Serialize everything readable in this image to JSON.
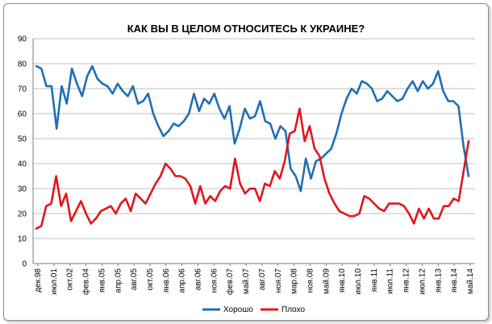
{
  "chart_data": {
    "type": "line",
    "title": "КАК ВЫ В ЦЕЛОМ ОТНОСИТЕСЬ К УКРАИНЕ?",
    "xlabel": "",
    "ylabel": "",
    "ylim": [
      0,
      90
    ],
    "yticks": [
      0,
      10,
      20,
      30,
      40,
      50,
      60,
      70,
      80,
      90
    ],
    "grid": true,
    "legend_position": "bottom",
    "x_tick_labels": [
      "дек.98",
      "июл.01",
      "окт.02",
      "фев.04",
      "янв.05",
      "апр.05",
      "авг.05",
      "окт.05",
      "янв.06",
      "апр.06",
      "авг.06",
      "ноя.06",
      "фев.07",
      "май.07",
      "авг.07",
      "ноя.07",
      "мар.08",
      "ноя.08",
      "май.09",
      "янв.10",
      "июл.10",
      "янв.11",
      "июл.11",
      "янв.12",
      "июл.12",
      "янв.13",
      "янв.14",
      "май.14"
    ],
    "series": [
      {
        "name": "Хорошо",
        "color": "#1f6fb4",
        "values": [
          79,
          78,
          71,
          71,
          54,
          71,
          64,
          78,
          72,
          67,
          75,
          79,
          74,
          72,
          71,
          68,
          72,
          69,
          67,
          71,
          64,
          65,
          68,
          60,
          55,
          51,
          53,
          56,
          55,
          57,
          60,
          68,
          61,
          66,
          64,
          68,
          62,
          58,
          63,
          48,
          54,
          62,
          58,
          59,
          65,
          57,
          56,
          50,
          55,
          53,
          38,
          35,
          29,
          42,
          34,
          41,
          42,
          44,
          46,
          52,
          60,
          66,
          70,
          68,
          73,
          72,
          70,
          65,
          66,
          69,
          67,
          65,
          66,
          70,
          73,
          69,
          73,
          70,
          72,
          77,
          69,
          65,
          65,
          63,
          47,
          35
        ]
      },
      {
        "name": "Плохо",
        "color": "#e0161b",
        "values": [
          14,
          15,
          23,
          24,
          35,
          23,
          28,
          17,
          21,
          25,
          20,
          16,
          18,
          21,
          22,
          23,
          20,
          24,
          26,
          21,
          28,
          26,
          24,
          28,
          32,
          35,
          40,
          38,
          35,
          35,
          34,
          31,
          24,
          31,
          24,
          27,
          25,
          29,
          31,
          30,
          42,
          32,
          28,
          30,
          30,
          25,
          32,
          31,
          37,
          34,
          41,
          52,
          53,
          62,
          49,
          55,
          46,
          43,
          34,
          28,
          24,
          21,
          20,
          19,
          19,
          20,
          27,
          26,
          24,
          22,
          21,
          24,
          24,
          24,
          23,
          20,
          16,
          22,
          18,
          22,
          18,
          18,
          23,
          23,
          26,
          25,
          37,
          49
        ]
      }
    ]
  }
}
